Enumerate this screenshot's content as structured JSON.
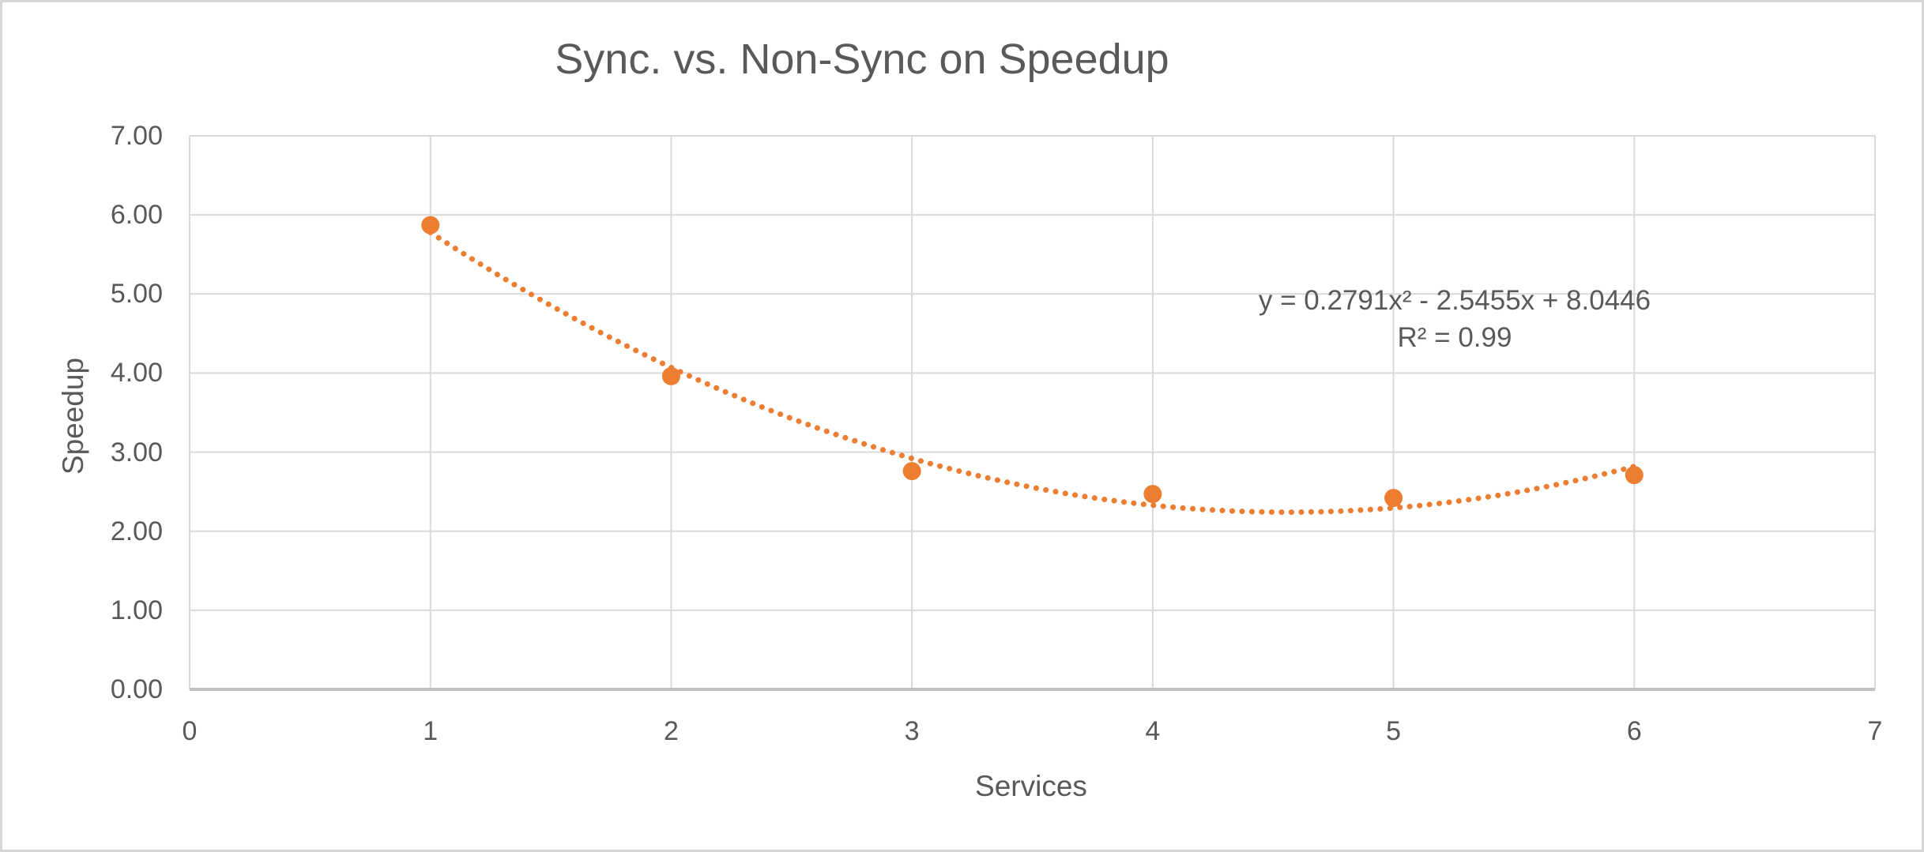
{
  "chart_data": {
    "type": "scatter",
    "title": "Sync. vs. Non-Sync on Speedup",
    "xlabel": "Services",
    "ylabel": "Speedup",
    "xlim": [
      0,
      7
    ],
    "ylim": [
      0,
      7
    ],
    "x_ticks": [
      "0",
      "1",
      "2",
      "3",
      "4",
      "5",
      "6",
      "7"
    ],
    "y_ticks": [
      "0.00",
      "1.00",
      "2.00",
      "3.00",
      "4.00",
      "5.00",
      "6.00",
      "7.00"
    ],
    "grid": true,
    "legend": false,
    "series": [
      {
        "name": "Speedup",
        "marker": "circle",
        "color": "#ED7D31",
        "points": [
          {
            "x": 1,
            "y": 5.87
          },
          {
            "x": 2,
            "y": 3.96
          },
          {
            "x": 3,
            "y": 2.76
          },
          {
            "x": 4,
            "y": 2.47
          },
          {
            "x": 5,
            "y": 2.42
          },
          {
            "x": 6,
            "y": 2.71
          }
        ]
      }
    ],
    "trendline": {
      "type": "polynomial",
      "order": 2,
      "coefficients": {
        "a": 0.2791,
        "b": -2.5455,
        "c": 8.0446
      },
      "r_squared": 0.99,
      "x_range": [
        1,
        6
      ],
      "style": "dotted",
      "color": "#ED7D31",
      "equation_label": "y = 0.2791x² - 2.5455x + 8.0446",
      "r2_label": "R² = 0.99"
    }
  },
  "colors": {
    "accent_orange": "#ED7D31",
    "text_gray": "#595959",
    "gridline": "#D9D9D9",
    "axis_line": "#BFBFBF",
    "chart_border": "#D6D6D6",
    "background": "#FFFFFF"
  }
}
